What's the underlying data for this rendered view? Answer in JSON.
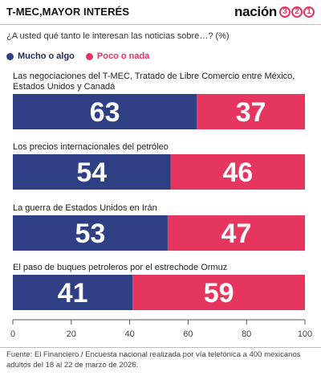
{
  "header": {
    "title": "T-MEC,MAYOR INTERÉS",
    "brand_word": "nación",
    "brand_digits": [
      "3",
      "2",
      "1"
    ]
  },
  "question": "¿A usted qué tanto le interesan las noticias sobre…? (%)",
  "colors": {
    "mucho": "#2e3f84",
    "poco": "#e6355e",
    "axis": "#555555",
    "brand_accent": "#e6355e"
  },
  "chart_data": {
    "type": "bar",
    "orientation": "horizontal",
    "stacked": true,
    "categories": [
      "Las negociaciones del T-MEC, Tratado de Libre Comercio entre México, Estados Unidos y Canadá",
      "Los precios internacionales del petróleo",
      "La guerra de Estados Unidos en Irán",
      "El paso de buques petroleros por el estrechode Ormuz"
    ],
    "category_lines": [
      [
        "Las negociaciones del T-MEC, Tratado de Libre Comercio entre México,",
        "Estados Unidos y Canadá"
      ],
      [
        "Los precios internacionales del petróleo"
      ],
      [
        "La guerra de Estados Unidos en Irán"
      ],
      [
        "El paso de buques petroleros por el estrechode Ormuz"
      ]
    ],
    "series": [
      {
        "name": "Mucho o algo",
        "values": [
          63,
          54,
          53,
          41
        ]
      },
      {
        "name": "Poco o nada",
        "values": [
          37,
          46,
          47,
          59
        ]
      }
    ],
    "xlim": [
      0,
      100
    ],
    "xticks": [
      0,
      20,
      40,
      60,
      80,
      100
    ],
    "legend": "top-left"
  },
  "source": "Fuente: El Financiero / Encuesta nacional realizada por vía telefónica a 400 mexicanos adultos del 18 al 22 de marzo de 2026."
}
